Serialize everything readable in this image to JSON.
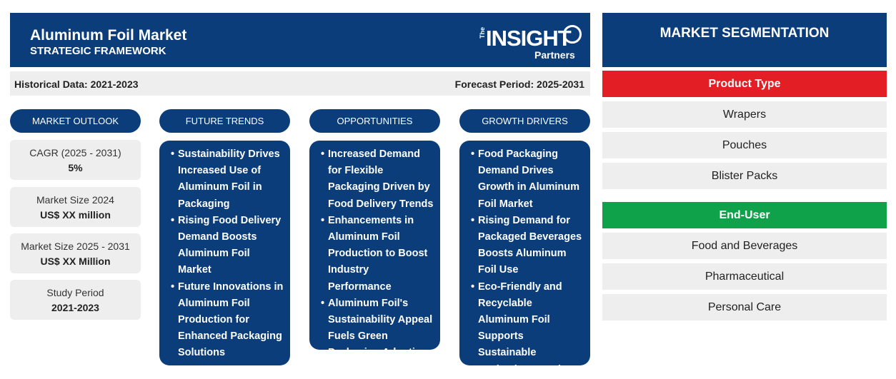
{
  "header": {
    "title": "Aluminum Foil Market",
    "subtitle": "STRATEGIC FRAMEWORK",
    "logo": {
      "the": "The",
      "insight": "INSIGHT",
      "partners": "Partners"
    }
  },
  "periods": {
    "historical": "Historical Data: 2021-2023",
    "forecast": "Forecast Period: 2025-2031"
  },
  "market_outlook": {
    "heading": "MARKET OUTLOOK",
    "stats": [
      {
        "label": "CAGR (2025 - 2031)",
        "value": "5%"
      },
      {
        "label": "Market Size 2024",
        "value": "US$ XX million"
      },
      {
        "label": "Market Size 2025 - 2031",
        "value": "US$ XX Million"
      },
      {
        "label": "Study Period",
        "value": "2021-2023"
      }
    ]
  },
  "future_trends": {
    "heading": "FUTURE TRENDS",
    "items": [
      "Sustainability Drives Increased Use of Aluminum Foil in Packaging",
      "Rising Food Delivery Demand Boosts Aluminum Foil Market",
      "Future Innovations in Aluminum Foil Production for Enhanced Packaging Solutions"
    ]
  },
  "opportunities": {
    "heading": "OPPORTUNITIES",
    "items": [
      "Increased Demand for Flexible Packaging Driven by Food Delivery Trends",
      "Enhancements in Aluminum Foil Production to Boost Industry Performance",
      "Aluminum Foil's Sustainability Appeal Fuels Green Packaging Adoption"
    ]
  },
  "growth_drivers": {
    "heading": "GROWTH DRIVERS",
    "items": [
      "Food Packaging Demand Drives Growth in Aluminum Foil Market",
      "Rising Demand for Packaged Beverages Boosts Aluminum Foil Use",
      "Eco-Friendly and Recyclable Aluminum Foil Supports Sustainable Packaging Trends"
    ]
  },
  "segmentation": {
    "heading": "MARKET SEGMENTATION",
    "groups": [
      {
        "title": "Product Type",
        "color": "#e31e24",
        "items": [
          "Wrapers",
          "Pouches",
          "Blister Packs"
        ]
      },
      {
        "title": "End-User",
        "color": "#0fa24a",
        "items": [
          "Food and Beverages",
          "Pharmaceutical",
          "Personal Care"
        ]
      }
    ]
  },
  "colors": {
    "primary": "#0a3d7a",
    "panel": "#eeeeee"
  }
}
